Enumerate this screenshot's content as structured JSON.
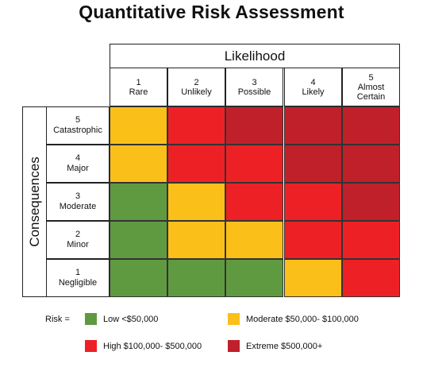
{
  "title": "Quantitative Risk Assessment",
  "likelihood": {
    "label": "Likelihood",
    "columns": [
      {
        "num": "1",
        "label": "Rare",
        "label2": ""
      },
      {
        "num": "2",
        "label": "Unlikely",
        "label2": ""
      },
      {
        "num": "3",
        "label": "Possible",
        "label2": ""
      },
      {
        "num": "4",
        "label": "Likely",
        "label2": ""
      },
      {
        "num": "5",
        "label": "Almost",
        "label2": "Certain"
      }
    ]
  },
  "consequences": {
    "label": "Consequences",
    "rows": [
      {
        "num": "5",
        "label": "Catastrophic"
      },
      {
        "num": "4",
        "label": "Major"
      },
      {
        "num": "3",
        "label": "Moderate"
      },
      {
        "num": "2",
        "label": "Minor"
      },
      {
        "num": "1",
        "label": "Negligible"
      }
    ]
  },
  "matrix": [
    [
      "moderate",
      "high",
      "extreme",
      "extreme",
      "extreme"
    ],
    [
      "moderate",
      "high",
      "high",
      "extreme",
      "extreme"
    ],
    [
      "low",
      "moderate",
      "high",
      "high",
      "extreme"
    ],
    [
      "low",
      "moderate",
      "moderate",
      "high",
      "high"
    ],
    [
      "low",
      "low",
      "low",
      "moderate",
      "high"
    ]
  ],
  "colors": {
    "low": "#5f9a41",
    "moderate": "#fbbf1a",
    "high": "#ed2125",
    "extreme": "#c0202a"
  },
  "legend": {
    "prefix": "Risk =",
    "items": [
      {
        "level": "low",
        "label": "Low <$50,000"
      },
      {
        "level": "moderate",
        "label": "Moderate $50,000- $100,000"
      },
      {
        "level": "high",
        "label": "High $100,000- $500,000"
      },
      {
        "level": "extreme",
        "label": "Extreme $500,000+"
      }
    ]
  }
}
